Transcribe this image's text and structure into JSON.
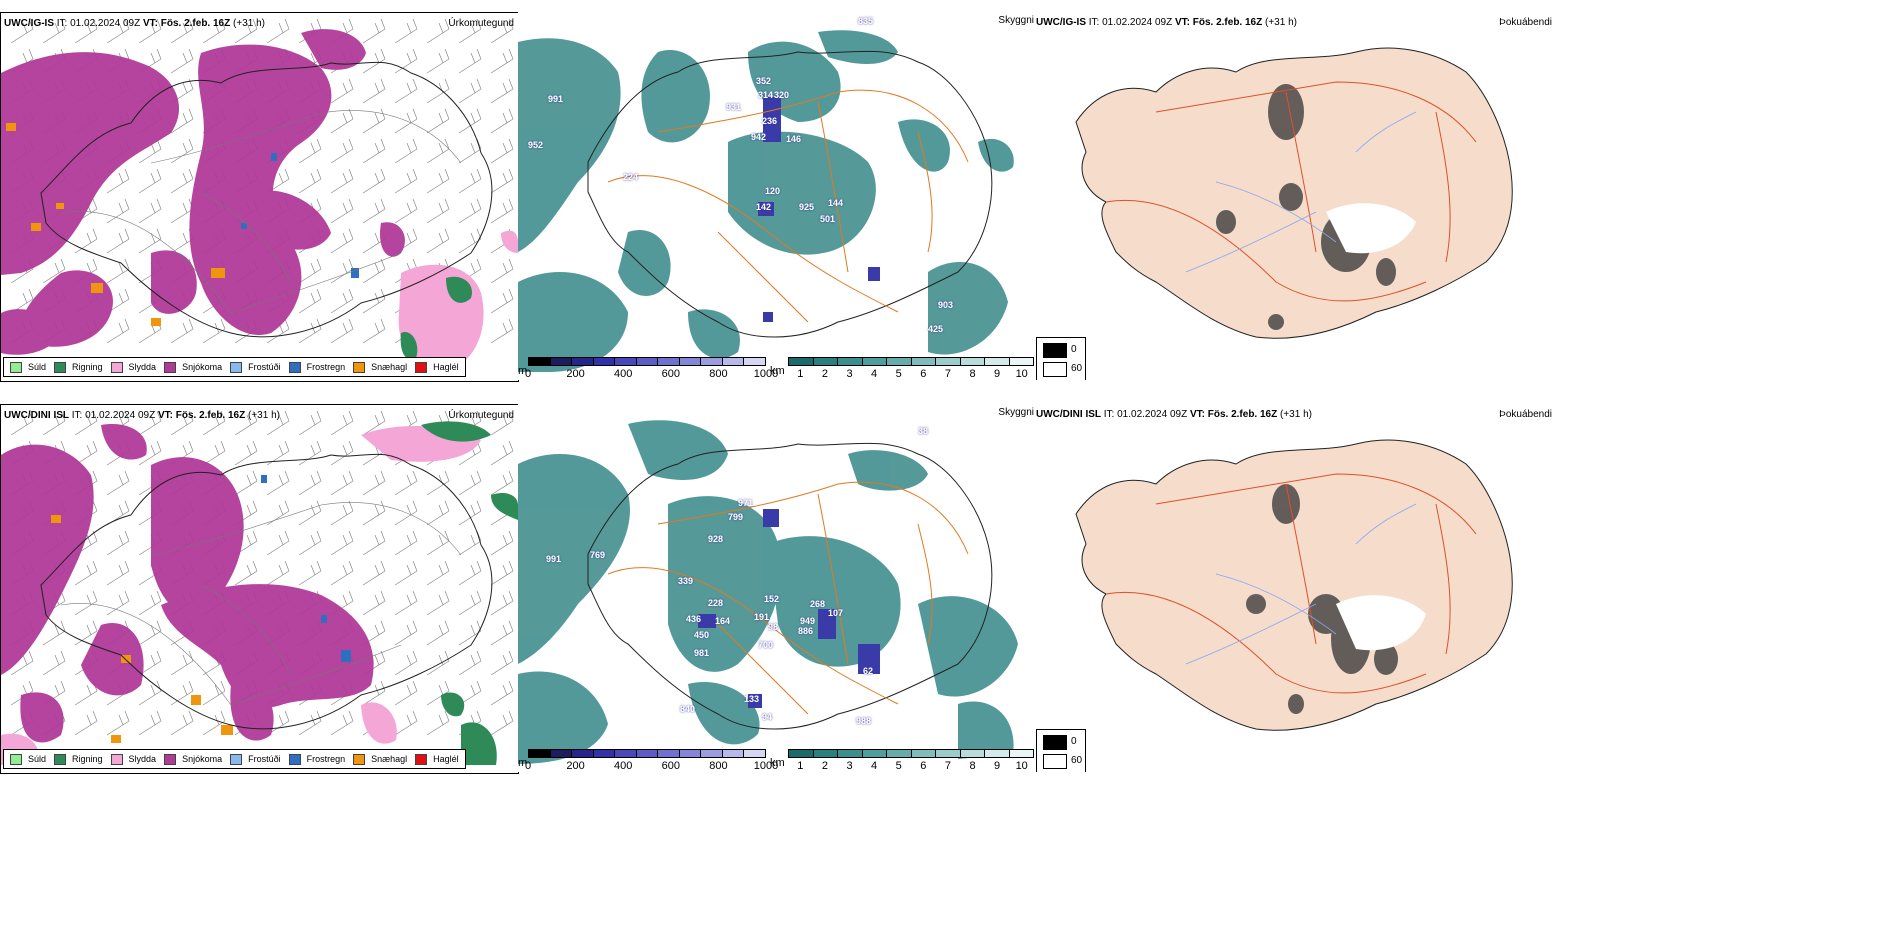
{
  "rows": [
    {
      "model_label": "UWC/IG-IS",
      "it_label": "IT:",
      "it_value": "01.02.2024 09Z",
      "vt_label": "VT:",
      "vt_value": "Fös. 2.feb. 16Z",
      "lead": "(+31 h)",
      "elev_labels": [
        "835",
        "991",
        "352",
        "314",
        "320",
        "931",
        "236",
        "942",
        "146",
        "952",
        "224",
        "120",
        "144",
        "925",
        "501",
        "142",
        "903",
        "425"
      ]
    },
    {
      "model_label": "UWC/DINI ISL",
      "it_label": "IT:",
      "it_value": "01.02.2024 09Z",
      "vt_label": "VT:",
      "vt_value": "Fös. 2.feb. 16Z",
      "lead": "(+31 h)",
      "elev_labels": [
        "38",
        "971",
        "799",
        "928",
        "991",
        "769",
        "339",
        "228",
        "152",
        "268",
        "949",
        "107",
        "191",
        "436",
        "164",
        "886",
        "450",
        "98",
        "981",
        "700",
        "62",
        "133",
        "94",
        "840",
        "988"
      ]
    }
  ],
  "panel_titles": {
    "precip": "Úrkomutegund",
    "visibility": "Skyggni",
    "cloud": "Þokuábendi"
  },
  "precip_legend": [
    {
      "label": "Súld",
      "color": "#90ee90"
    },
    {
      "label": "Rigning",
      "color": "#2e8b57"
    },
    {
      "label": "Slydda",
      "color": "#f4a6d7"
    },
    {
      "label": "Snjókoma",
      "color": "#b03a98"
    },
    {
      "label": "Frostúði",
      "color": "#87b8ee"
    },
    {
      "label": "Frostregn",
      "color": "#2f6fbf"
    },
    {
      "label": "Snæhagl",
      "color": "#f0960e"
    },
    {
      "label": "Haglél",
      "color": "#e01010"
    }
  ],
  "visibility_legend": {
    "m_unit": "m",
    "m_ticks": [
      "0",
      "200",
      "400",
      "600",
      "800",
      "1000"
    ],
    "m_colors": [
      "#000000",
      "#1c1c5e",
      "#25258a",
      "#3131a8",
      "#4848b8",
      "#5c5cc4",
      "#7070ce",
      "#8686d8",
      "#9c9ce0",
      "#b8b8ea",
      "#d6d6f4"
    ],
    "km_unit": "km",
    "km_ticks": [
      "1",
      "2",
      "3",
      "4",
      "5",
      "6",
      "7",
      "8",
      "9",
      "10"
    ],
    "km_colors": [
      "#1a6b6b",
      "#2a7f7f",
      "#3b8f8f",
      "#4f9d9d",
      "#66acac",
      "#80bcbc",
      "#9acccc",
      "#b6dcdc",
      "#d2eaea",
      "#eaf6f6"
    ]
  },
  "cloud_legend": [
    {
      "label": "0",
      "color": "#000000"
    },
    {
      "label": "60",
      "color": "#ffffff"
    }
  ]
}
